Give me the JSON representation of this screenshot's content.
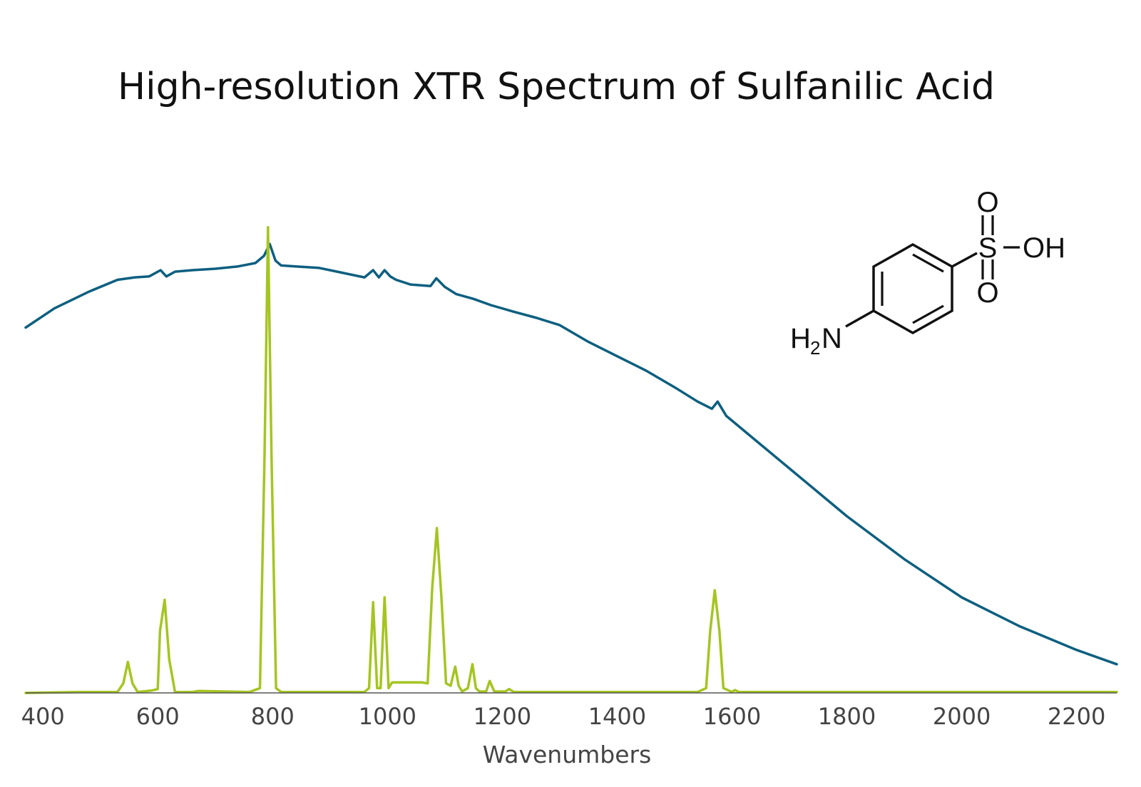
{
  "chart_data": {
    "type": "line",
    "title": "High-resolution XTR Spectrum of Sulfanilic Acid",
    "xlabel": "Wavenumbers",
    "ylabel": "",
    "xlim": [
      370,
      2270
    ],
    "ylim": [
      0,
      1
    ],
    "xticks": [
      400,
      600,
      800,
      1000,
      1200,
      1400,
      1600,
      1800,
      2000,
      2200
    ],
    "grid": false,
    "legend": "none",
    "series": [
      {
        "color": "#0d5f80",
        "x": [
          370,
          420,
          480,
          530,
          560,
          585,
          605,
          615,
          630,
          660,
          700,
          740,
          770,
          785,
          795,
          805,
          815,
          840,
          880,
          920,
          960,
          975,
          985,
          995,
          1005,
          1015,
          1040,
          1075,
          1085,
          1100,
          1120,
          1150,
          1180,
          1220,
          1260,
          1300,
          1350,
          1400,
          1450,
          1500,
          1540,
          1565,
          1575,
          1590,
          1650,
          1700,
          1800,
          1900,
          2000,
          2100,
          2200,
          2270
        ],
        "y": [
          0.765,
          0.805,
          0.84,
          0.865,
          0.87,
          0.872,
          0.885,
          0.872,
          0.882,
          0.885,
          0.888,
          0.893,
          0.9,
          0.915,
          0.94,
          0.905,
          0.895,
          0.893,
          0.89,
          0.88,
          0.87,
          0.885,
          0.87,
          0.885,
          0.872,
          0.865,
          0.855,
          0.852,
          0.868,
          0.85,
          0.835,
          0.825,
          0.812,
          0.798,
          0.785,
          0.77,
          0.735,
          0.705,
          0.675,
          0.64,
          0.61,
          0.595,
          0.61,
          0.58,
          0.52,
          0.47,
          0.37,
          0.28,
          0.2,
          0.14,
          0.09,
          0.06
        ]
      },
      {
        "color": "#a4c521",
        "x": [
          370,
          460,
          530,
          540,
          548,
          556,
          565,
          590,
          600,
          604,
          612,
          620,
          630,
          660,
          670,
          760,
          778,
          786,
          792,
          798,
          806,
          815,
          960,
          968,
          975,
          982,
          988,
          995,
          1002,
          1008,
          1016,
          1022,
          1060,
          1070,
          1078,
          1086,
          1094,
          1102,
          1110,
          1118,
          1124,
          1130,
          1140,
          1148,
          1154,
          1160,
          1172,
          1178,
          1186,
          1205,
          1212,
          1220,
          1540,
          1555,
          1562,
          1570,
          1578,
          1585,
          1600,
          1605,
          1612,
          1650,
          1800,
          1900,
          2270
        ],
        "y": [
          0.0,
          0.002,
          0.002,
          0.02,
          0.065,
          0.02,
          0.002,
          0.005,
          0.008,
          0.13,
          0.195,
          0.07,
          0.002,
          0.002,
          0.004,
          0.002,
          0.01,
          0.5,
          0.975,
          0.5,
          0.01,
          0.002,
          0.002,
          0.01,
          0.19,
          0.01,
          0.01,
          0.2,
          0.01,
          0.022,
          0.022,
          0.022,
          0.022,
          0.02,
          0.22,
          0.345,
          0.2,
          0.02,
          0.015,
          0.055,
          0.015,
          0.003,
          0.01,
          0.06,
          0.01,
          0.003,
          0.003,
          0.025,
          0.003,
          0.003,
          0.008,
          0.002,
          0.002,
          0.01,
          0.13,
          0.215,
          0.13,
          0.01,
          0.002,
          0.006,
          0.002,
          0.002,
          0.002,
          0.002,
          0.002
        ]
      }
    ]
  },
  "molecule": {
    "amine": "H",
    "amine_sub": "2",
    "amine_n": "N",
    "sulfur": "S",
    "oxygen_top": "O",
    "oxygen_bottom": "O",
    "hydroxyl": "OH"
  }
}
